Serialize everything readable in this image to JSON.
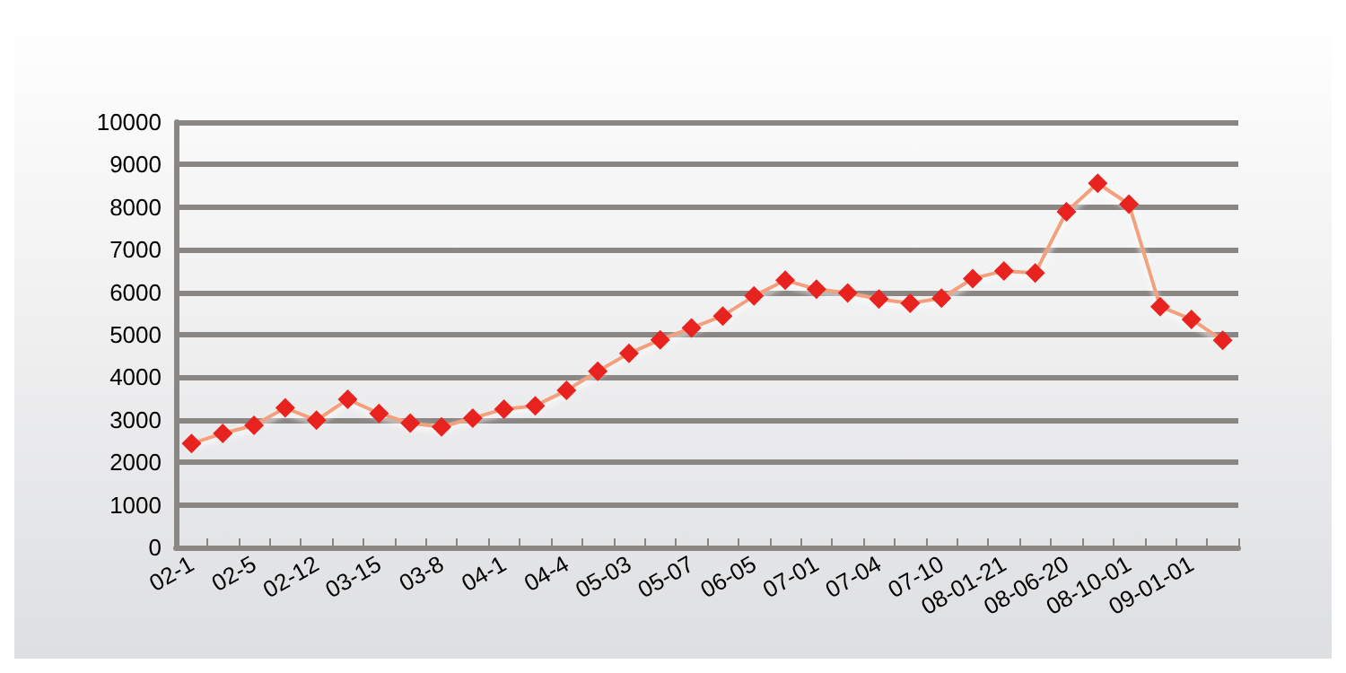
{
  "chart_data": {
    "type": "line",
    "categories": [
      "02-1",
      null,
      "02-5",
      null,
      "02-12",
      null,
      "03-15",
      null,
      "03-8",
      null,
      "04-1",
      null,
      "04-4",
      null,
      "05-03",
      null,
      "05-07",
      null,
      "06-05",
      null,
      "07-01",
      null,
      "07-04",
      null,
      "07-10",
      null,
      "08-01-21",
      null,
      "08-06-20",
      null,
      "08-10-01",
      null,
      "09-01-01",
      null
    ],
    "series": [
      {
        "color": "#e8231f",
        "values": [
          2440,
          2680,
          2870,
          3280,
          2990,
          3480,
          3150,
          2920,
          2830,
          3040,
          3250,
          3330,
          3690,
          4140,
          4560,
          4880,
          5160,
          5440,
          5910,
          6280,
          6070,
          5980,
          5840,
          5740,
          5860,
          6320,
          6500,
          6450,
          7890,
          8560,
          8070,
          5660,
          5360,
          4870
        ]
      }
    ],
    "ylim": [
      0,
      10000
    ],
    "yticks": [
      0,
      1000,
      2000,
      3000,
      4000,
      5000,
      6000,
      7000,
      8000,
      9000,
      10000
    ],
    "grid": "y",
    "marker": "diamond",
    "line_style": "solid"
  }
}
